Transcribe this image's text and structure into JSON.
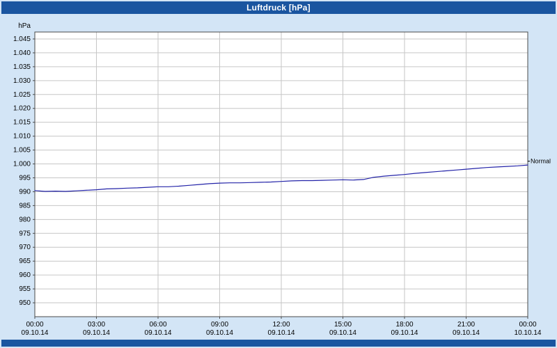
{
  "window": {
    "title": "Luftdruck [hPa]"
  },
  "colors": {
    "title_bar": "#1a55a0",
    "background": "#d3e5f6",
    "plot_background": "#ffffff",
    "grid": "#c6c6c6",
    "plot_border": "#4a4a4a",
    "line": "#2323a8",
    "text": "#000000"
  },
  "chart_data": {
    "type": "line",
    "title": "Luftdruck [hPa]",
    "y_unit_label": "hPa",
    "xlabel": "",
    "ylabel": "hPa",
    "ylim": [
      945,
      1047.5
    ],
    "xlim_hours": [
      0,
      24
    ],
    "grid": true,
    "legend_position": "none",
    "annotation": {
      "label": "Normal",
      "value": 1001
    },
    "y_ticks": [
      {
        "label": "1.045",
        "value": 1045
      },
      {
        "label": "1.040",
        "value": 1040
      },
      {
        "label": "1.035",
        "value": 1035
      },
      {
        "label": "1.030",
        "value": 1030
      },
      {
        "label": "1.025",
        "value": 1025
      },
      {
        "label": "1.020",
        "value": 1020
      },
      {
        "label": "1.015",
        "value": 1015
      },
      {
        "label": "1.010",
        "value": 1010
      },
      {
        "label": "1.005",
        "value": 1005
      },
      {
        "label": "1.000",
        "value": 1000
      },
      {
        "label": "995",
        "value": 995
      },
      {
        "label": "990",
        "value": 990
      },
      {
        "label": "985",
        "value": 985
      },
      {
        "label": "980",
        "value": 980
      },
      {
        "label": "975",
        "value": 975
      },
      {
        "label": "970",
        "value": 970
      },
      {
        "label": "965",
        "value": 965
      },
      {
        "label": "960",
        "value": 960
      },
      {
        "label": "955",
        "value": 955
      },
      {
        "label": "950",
        "value": 950
      }
    ],
    "x_ticks": [
      {
        "hour": 0,
        "time": "00:00",
        "date": "09.10.14"
      },
      {
        "hour": 3,
        "time": "03:00",
        "date": "09.10.14"
      },
      {
        "hour": 6,
        "time": "06:00",
        "date": "09.10.14"
      },
      {
        "hour": 9,
        "time": "09:00",
        "date": "09.10.14"
      },
      {
        "hour": 12,
        "time": "12:00",
        "date": "09.10.14"
      },
      {
        "hour": 15,
        "time": "15:00",
        "date": "09.10.14"
      },
      {
        "hour": 18,
        "time": "18:00",
        "date": "09.10.14"
      },
      {
        "hour": 21,
        "time": "21:00",
        "date": "09.10.14"
      },
      {
        "hour": 24,
        "time": "00:00",
        "date": "10.10.14"
      }
    ],
    "series": [
      {
        "name": "Luftdruck",
        "color": "#2323a8",
        "points": [
          [
            0,
            990.4
          ],
          [
            0.5,
            990.1
          ],
          [
            1,
            990.2
          ],
          [
            1.5,
            990.1
          ],
          [
            2,
            990.3
          ],
          [
            2.5,
            990.5
          ],
          [
            3,
            990.7
          ],
          [
            3.5,
            991.0
          ],
          [
            4,
            991.1
          ],
          [
            4.5,
            991.3
          ],
          [
            5,
            991.4
          ],
          [
            5.5,
            991.6
          ],
          [
            6,
            991.8
          ],
          [
            6.5,
            991.8
          ],
          [
            7,
            992.0
          ],
          [
            7.5,
            992.3
          ],
          [
            8,
            992.6
          ],
          [
            8.5,
            992.9
          ],
          [
            9,
            993.1
          ],
          [
            9.5,
            993.2
          ],
          [
            10,
            993.2
          ],
          [
            10.5,
            993.3
          ],
          [
            11,
            993.4
          ],
          [
            11.5,
            993.5
          ],
          [
            12,
            993.7
          ],
          [
            12.5,
            993.9
          ],
          [
            13,
            994.0
          ],
          [
            13.5,
            994.0
          ],
          [
            14,
            994.1
          ],
          [
            14.5,
            994.2
          ],
          [
            15,
            994.3
          ],
          [
            15.5,
            994.2
          ],
          [
            16,
            994.4
          ],
          [
            16.5,
            995.2
          ],
          [
            17,
            995.6
          ],
          [
            17.5,
            995.9
          ],
          [
            18,
            996.2
          ],
          [
            18.5,
            996.6
          ],
          [
            19,
            996.9
          ],
          [
            19.5,
            997.2
          ],
          [
            20,
            997.5
          ],
          [
            20.5,
            997.8
          ],
          [
            21,
            998.1
          ],
          [
            21.5,
            998.4
          ],
          [
            22,
            998.7
          ],
          [
            22.5,
            998.9
          ],
          [
            23,
            999.1
          ],
          [
            23.5,
            999.3
          ],
          [
            24,
            999.6
          ]
        ]
      }
    ]
  }
}
